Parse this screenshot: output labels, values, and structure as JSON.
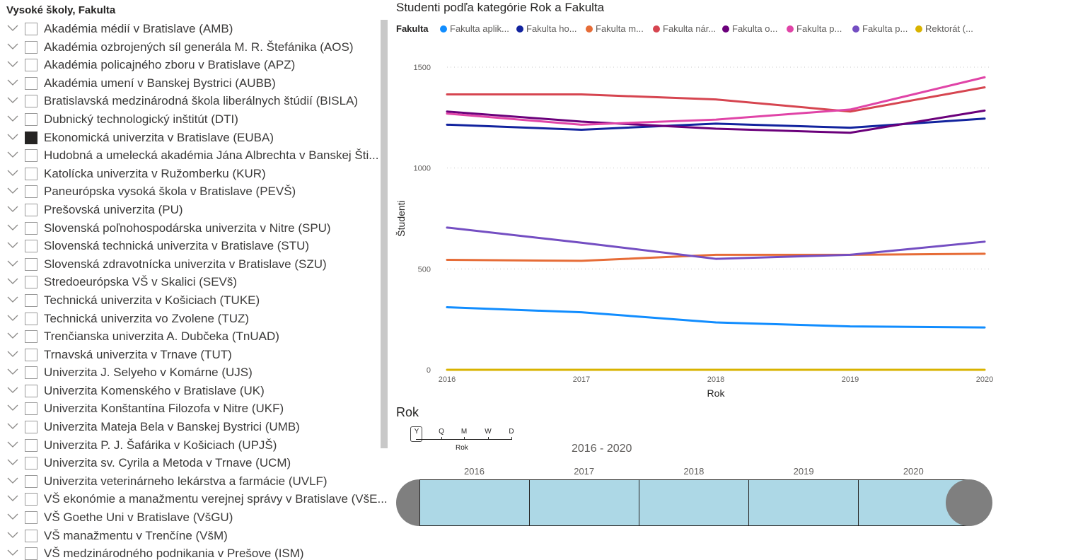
{
  "slicer": {
    "title": "Vysoké školy, Fakulta",
    "items": [
      {
        "label": "Akadémia médií v Bratislave (AMB)",
        "checked": false
      },
      {
        "label": "Akadémia ozbrojených síl generála M. R. Štefánika (AOS)",
        "checked": false
      },
      {
        "label": "Akadémia policajného zboru v Bratislave (APZ)",
        "checked": false
      },
      {
        "label": "Akadémia umení v Banskej Bystrici (AUBB)",
        "checked": false
      },
      {
        "label": "Bratislavská medzinárodná škola liberálnych štúdií (BISLA)",
        "checked": false
      },
      {
        "label": "Dubnický technologický inštitút (DTI)",
        "checked": false
      },
      {
        "label": "Ekonomická univerzita v Bratislave (EUBA)",
        "checked": true
      },
      {
        "label": "Hudobná a umelecká akadémia Jána Albrechta v Banskej Šti...",
        "checked": false
      },
      {
        "label": "Katolícka univerzita v Ružomberku (KUR)",
        "checked": false
      },
      {
        "label": "Paneurópska vysoká škola v Bratislave (PEVŠ)",
        "checked": false
      },
      {
        "label": "Prešovská univerzita (PU)",
        "checked": false
      },
      {
        "label": "Slovenská poľnohospodárska univerzita v Nitre (SPU)",
        "checked": false
      },
      {
        "label": "Slovenská technická univerzita v Bratislave (STU)",
        "checked": false
      },
      {
        "label": "Slovenská zdravotnícka univerzita v Bratislave (SZU)",
        "checked": false
      },
      {
        "label": "Stredoeurópska VŠ v Skalici (SEVš)",
        "checked": false
      },
      {
        "label": "Technická univerzita v Košiciach (TUKE)",
        "checked": false
      },
      {
        "label": "Technická univerzita vo Zvolene (TUZ)",
        "checked": false
      },
      {
        "label": "Trenčianska univerzita A. Dubčeka (TnUAD)",
        "checked": false
      },
      {
        "label": "Trnavská univerzita v Trnave (TUT)",
        "checked": false
      },
      {
        "label": "Univerzita J. Selyeho v Komárne (UJS)",
        "checked": false
      },
      {
        "label": "Univerzita Komenského v Bratislave (UK)",
        "checked": false
      },
      {
        "label": "Univerzita Konštantína Filozofa v Nitre (UKF)",
        "checked": false
      },
      {
        "label": "Univerzita Mateja Bela v Banskej Bystrici (UMB)",
        "checked": false
      },
      {
        "label": "Univerzita P. J. Šafárika v Košiciach (UPJŠ)",
        "checked": false
      },
      {
        "label": "Univerzita sv. Cyrila a Metoda v Trnave (UCM)",
        "checked": false
      },
      {
        "label": "Univerzita veterinárneho lekárstva a farmácie (UVLF)",
        "checked": false
      },
      {
        "label": "VŠ ekonómie a manažmentu verejnej správy v Bratislave (VšE...",
        "checked": false
      },
      {
        "label": "VŠ Goethe Uni v Bratislave (VšGU)",
        "checked": false
      },
      {
        "label": "VŠ manažmentu v Trenčíne (VšM)",
        "checked": false
      },
      {
        "label": "VŠ medzinárodného podnikania v Prešove (ISM)",
        "checked": false
      }
    ]
  },
  "legend": {
    "title": "Fakulta"
  },
  "chart_data": {
    "type": "line",
    "title": "Studenti podľa kategórie Rok a Fakulta",
    "xlabel": "Rok",
    "ylabel": "Študenti",
    "x": [
      "2016",
      "2017",
      "2018",
      "2019",
      "2020"
    ],
    "y_ticks": [
      "0",
      "500",
      "1000",
      "1500"
    ],
    "ylim": [
      0,
      1500
    ],
    "grid": true,
    "legend_placement": "top",
    "series": [
      {
        "name": "Fakulta aplik...",
        "color": "#118dff",
        "values": [
          310,
          285,
          235,
          215,
          210
        ]
      },
      {
        "name": "Fakulta ho...",
        "color": "#12239e",
        "values": [
          1215,
          1190,
          1220,
          1200,
          1245
        ]
      },
      {
        "name": "Fakulta m...",
        "color": "#e66c37",
        "values": [
          545,
          540,
          570,
          570,
          575
        ]
      },
      {
        "name": "Fakulta nár...",
        "color": "#d64550",
        "values": [
          1365,
          1365,
          1340,
          1280,
          1400
        ]
      },
      {
        "name": "Fakulta o...",
        "color": "#6b007b",
        "values": [
          1280,
          1230,
          1195,
          1175,
          1285
        ]
      },
      {
        "name": "Fakulta p...",
        "color": "#e044a7",
        "values": [
          1270,
          1215,
          1240,
          1290,
          1450
        ]
      },
      {
        "name": "Fakulta p...",
        "color": "#744ec2",
        "values": [
          705,
          630,
          550,
          570,
          635
        ]
      },
      {
        "name": "Rektorát (...",
        "color": "#d9b300",
        "values": [
          0,
          0,
          0,
          0,
          0
        ]
      }
    ]
  },
  "timeline": {
    "title": "Rok",
    "granularity": [
      "Y",
      "Q",
      "M",
      "W",
      "D"
    ],
    "granularity_selected": "Y",
    "granularity_label": "Rok",
    "range_label": "2016 - 2020",
    "years": [
      "2016",
      "2017",
      "2018",
      "2019",
      "2020"
    ],
    "selected_from": "2016",
    "selected_to": "2020"
  }
}
